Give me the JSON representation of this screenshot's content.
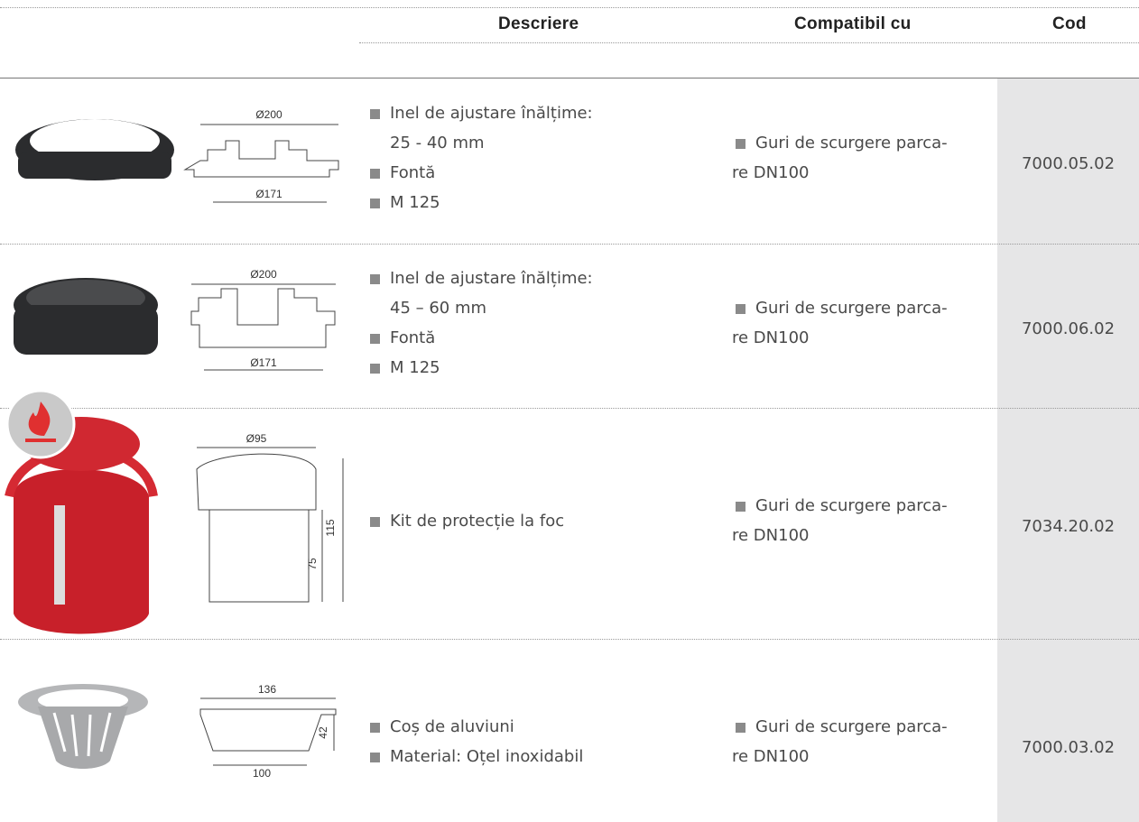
{
  "table": {
    "headers": {
      "description": "Descriere",
      "compatible": "Compatibil cu",
      "code": "Cod"
    },
    "rows": [
      {
        "drawing_labels": [
          "Ø200",
          "Ø171"
        ],
        "description": [
          [
            "Inel de ajustare înălțime:",
            "25 - 40 mm"
          ],
          [
            "Fontă"
          ],
          [
            "M  125"
          ]
        ],
        "compatible": [
          "Guri de scurgere parca-",
          "re DN100"
        ],
        "code": "7000.05.02"
      },
      {
        "drawing_labels": [
          "Ø200",
          "Ø171"
        ],
        "description": [
          [
            "Inel de ajustare înălțime:",
            "45 – 60  mm"
          ],
          [
            "Fontă"
          ],
          [
            "M  125"
          ]
        ],
        "compatible": [
          "Guri de scurgere parca-",
          "re DN100"
        ],
        "code": "7000.06.02"
      },
      {
        "drawing_labels": [
          "Ø95",
          "115",
          "75"
        ],
        "description": [
          [
            "Kit de protecție la foc"
          ]
        ],
        "compatible": [
          "Guri de scurgere parca-",
          "re DN100"
        ],
        "code": "7034.20.02"
      },
      {
        "drawing_labels": [
          "136",
          "42",
          "100"
        ],
        "description": [
          [
            "Coș de aluviuni"
          ],
          [
            "Material: Oțel inoxidabil"
          ]
        ],
        "compatible": [
          "Guri de scurgere parca-",
          "re DN100"
        ],
        "code": "7000.03.02"
      }
    ]
  }
}
